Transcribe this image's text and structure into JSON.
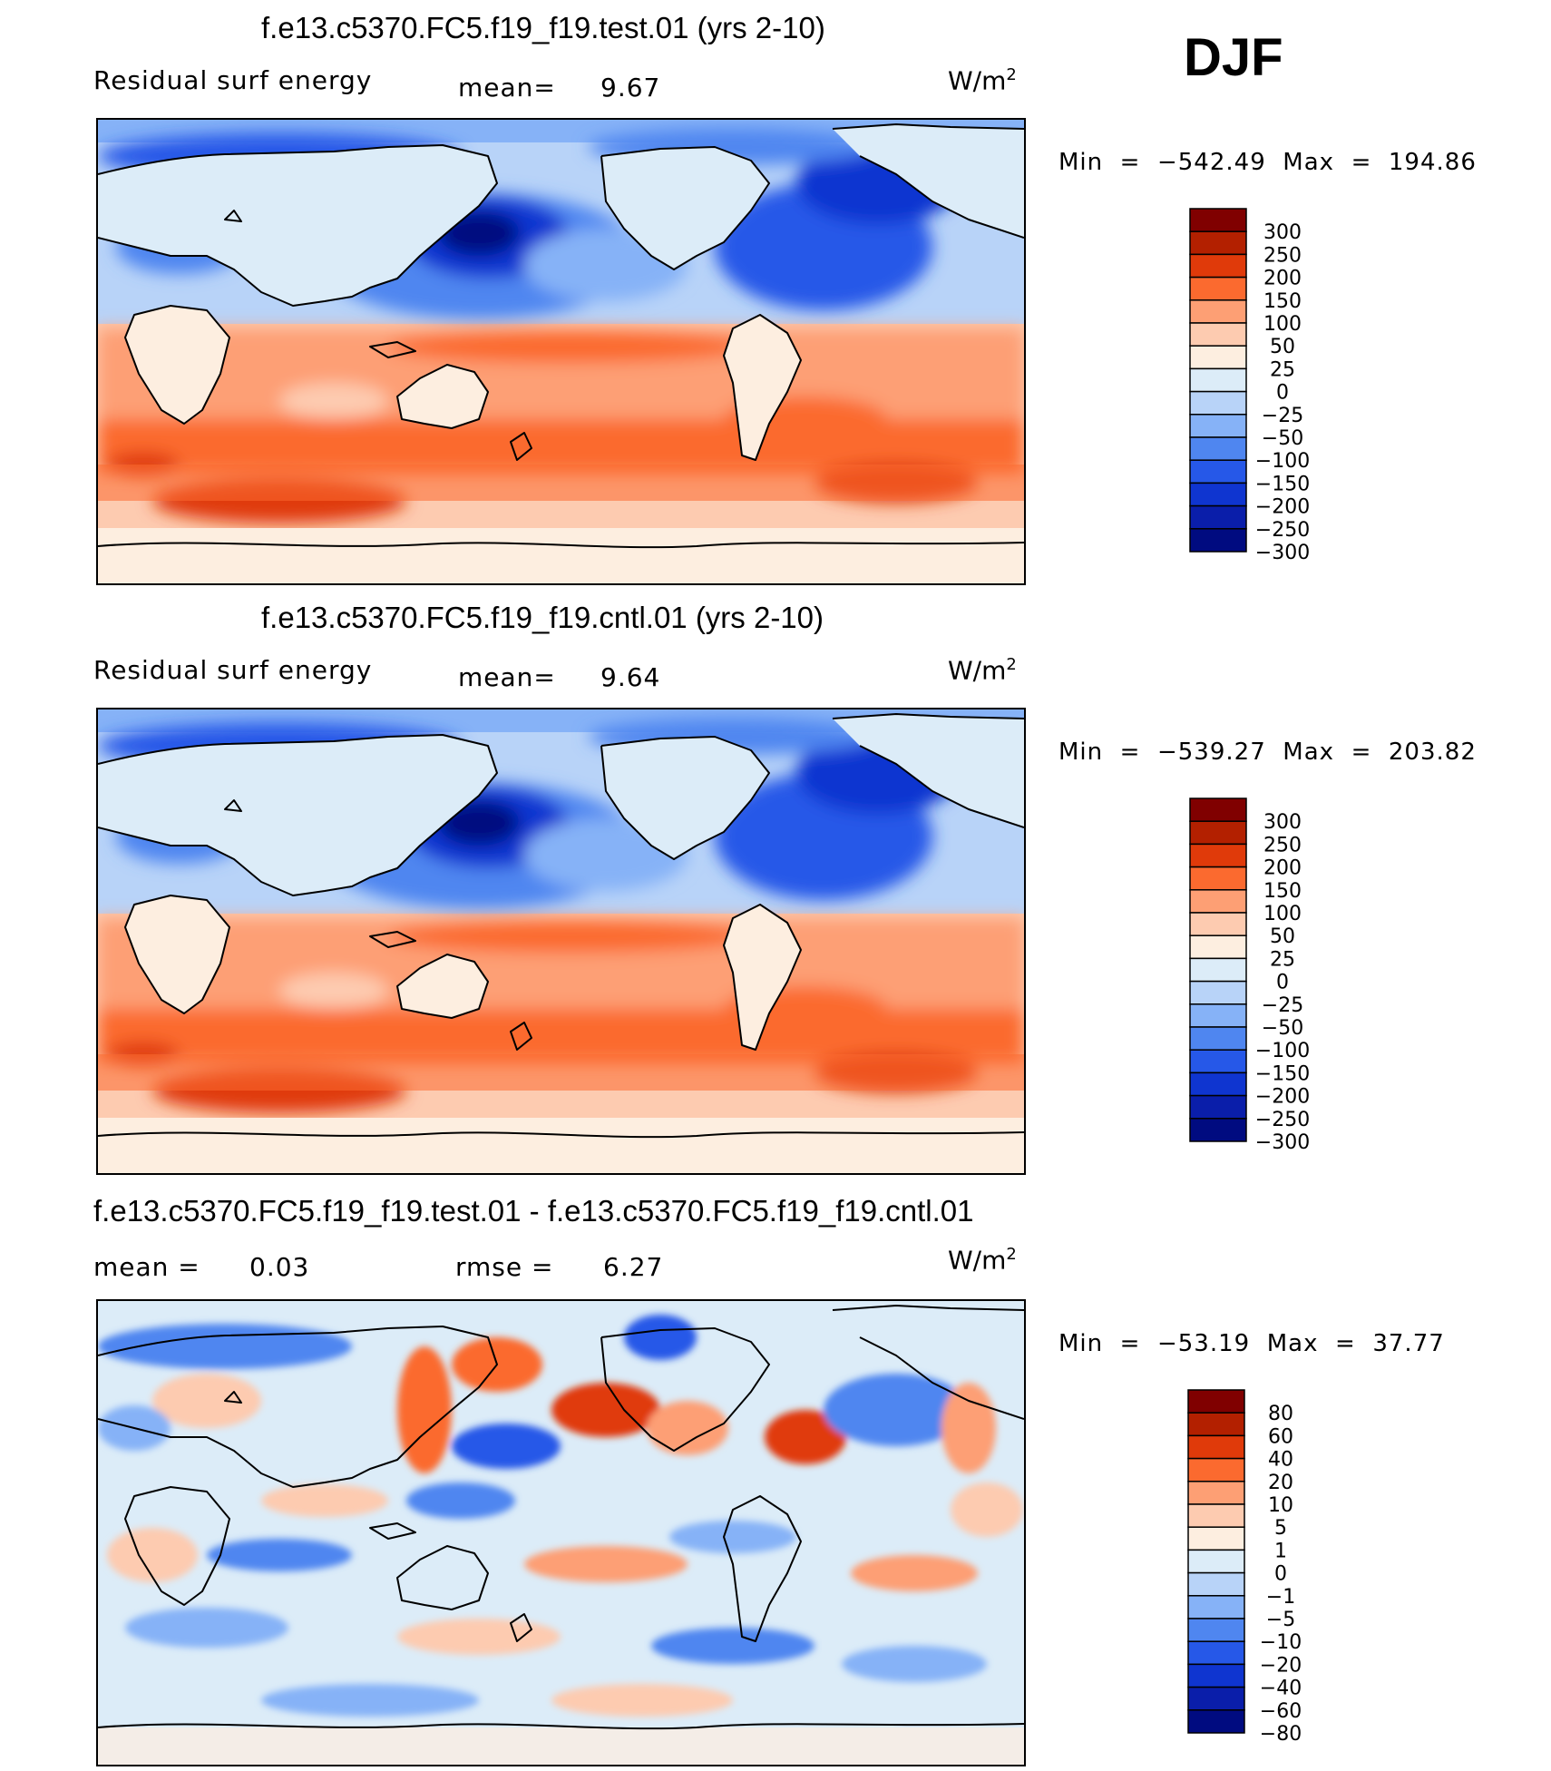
{
  "season": "DJF",
  "chart_data": [
    {
      "type": "heatmap",
      "title": "f.e13.c5370.FC5.f19_f19.test.01 (yrs 2-10)",
      "left_label": "Residual surf energy",
      "stat_label": "mean=",
      "stat_value": "9.67",
      "units": "W/m",
      "units_exp": "2",
      "min_label": "Min",
      "min_value": "−542.49",
      "max_label": "Max",
      "max_value": "194.86",
      "colorbar": {
        "colors": [
          "#800000",
          "#b32000",
          "#e03a0a",
          "#fb6a2f",
          "#fd9f74",
          "#fdcbb0",
          "#fdeee0",
          "#dcecf8",
          "#b8d3f8",
          "#86b2f7",
          "#4f86f0",
          "#2658e8",
          "#0f35d0",
          "#0a1eaa",
          "#000b80"
        ],
        "labels": [
          "300",
          "250",
          "200",
          "150",
          "100",
          "50",
          "25",
          "0",
          "−25",
          "−50",
          "−100",
          "−150",
          "−200",
          "−250",
          "−300"
        ]
      }
    },
    {
      "type": "heatmap",
      "title": "f.e13.c5370.FC5.f19_f19.cntl.01 (yrs 2-10)",
      "left_label": "Residual surf energy",
      "stat_label": "mean=",
      "stat_value": "9.64",
      "units": "W/m",
      "units_exp": "2",
      "min_label": "Min",
      "min_value": "−539.27",
      "max_label": "Max",
      "max_value": "203.82",
      "colorbar": {
        "colors": [
          "#800000",
          "#b32000",
          "#e03a0a",
          "#fb6a2f",
          "#fd9f74",
          "#fdcbb0",
          "#fdeee0",
          "#dcecf8",
          "#b8d3f8",
          "#86b2f7",
          "#4f86f0",
          "#2658e8",
          "#0f35d0",
          "#0a1eaa",
          "#000b80"
        ],
        "labels": [
          "300",
          "250",
          "200",
          "150",
          "100",
          "50",
          "25",
          "0",
          "−25",
          "−50",
          "−100",
          "−150",
          "−200",
          "−250",
          "−300"
        ]
      }
    },
    {
      "type": "heatmap",
      "title": "f.e13.c5370.FC5.f19_f19.test.01 - f.e13.c5370.FC5.f19_f19.cntl.01",
      "left_label": "mean =",
      "left_value": "0.03",
      "stat_label": "rmse =",
      "stat_value": "6.27",
      "units": "W/m",
      "units_exp": "2",
      "min_label": "Min",
      "min_value": "−53.19",
      "max_label": "Max",
      "max_value": "37.77",
      "colorbar": {
        "colors": [
          "#800000",
          "#b32000",
          "#e03a0a",
          "#fb6a2f",
          "#fd9f74",
          "#fdcbb0",
          "#fdeee0",
          "#dcecf8",
          "#b8d3f8",
          "#86b2f7",
          "#4f86f0",
          "#2658e8",
          "#0f35d0",
          "#0a1eaa",
          "#000b80"
        ],
        "labels": [
          "80",
          "60",
          "40",
          "20",
          "10",
          "5",
          "1",
          "0",
          "−1",
          "−5",
          "−10",
          "−20",
          "−40",
          "−60",
          "−80"
        ]
      }
    }
  ]
}
